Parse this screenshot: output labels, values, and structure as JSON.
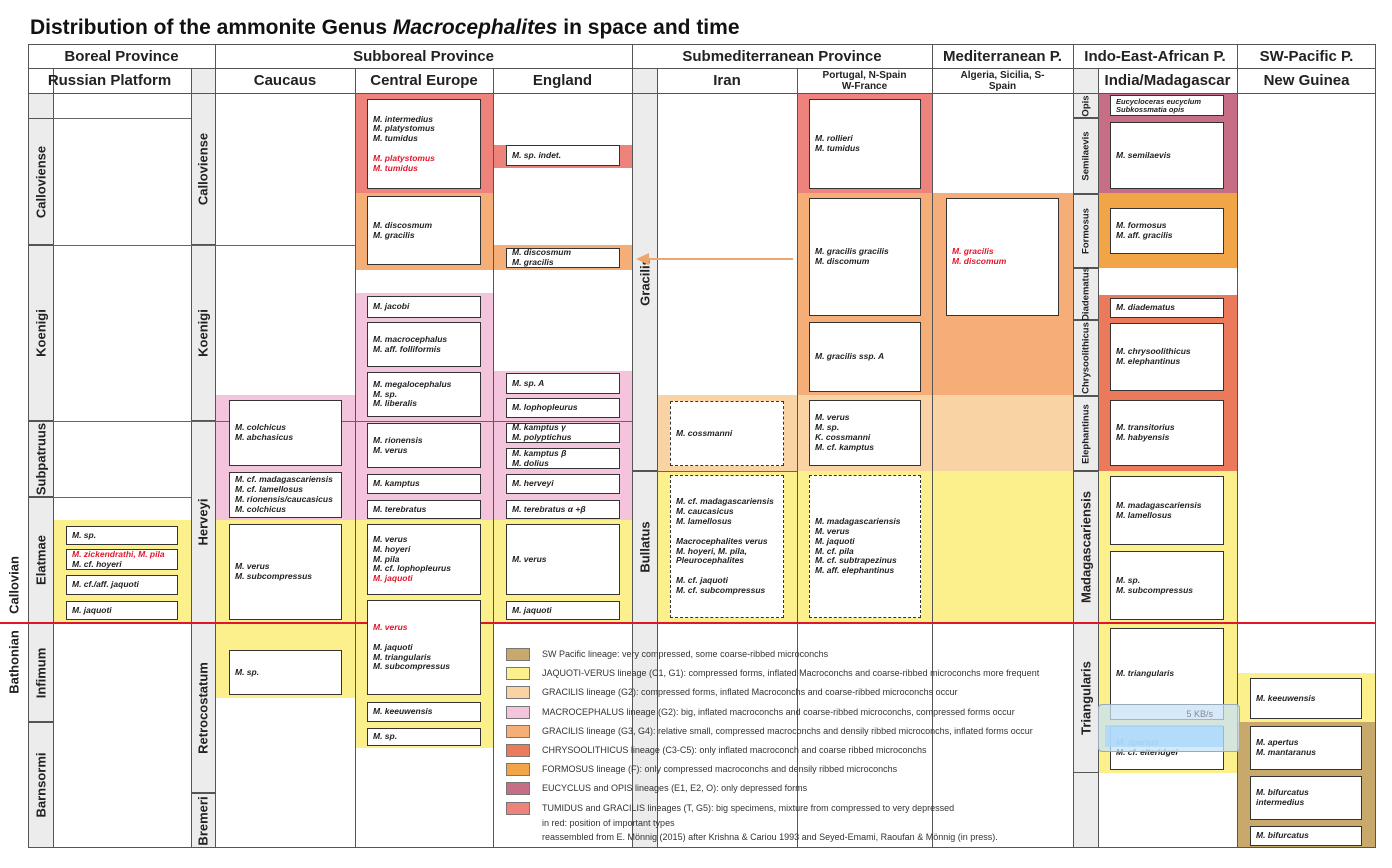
{
  "title": {
    "prefix": "Distribution of the ammonite Genus ",
    "italic": "Macrocephalites",
    "suffix": " in space and time"
  },
  "provinces": [
    "Boreal Province",
    "Subboreal Province",
    "Submediterranean Province",
    "Mediterranean P.",
    "Indo-East-African P.",
    "SW-Pacific P."
  ],
  "regions": [
    "Russian Platform",
    "Caucaus",
    "Central Europe",
    "England",
    "Iran",
    "Portugal, N-Spain W-France",
    "Algeria, Sicilia, S- Spain",
    "India/Madagascar",
    "New Guinea"
  ],
  "stages": [
    "Callovian",
    "Bathonian"
  ],
  "zones": {
    "russian": [
      "Calloviense",
      "Koenigi",
      "Subpatruus",
      "Elatmae",
      "Infimum",
      "Barnsormi"
    ],
    "subboreal": [
      "Calloviense",
      "Koenigi",
      "Herveyi",
      "Retrocostatum",
      "Bremeri"
    ],
    "submediterranean": [
      "Gracilis",
      "Bullatus"
    ],
    "indo": [
      "Opis",
      "Semilaevis",
      "Formosus",
      "Diadematus",
      "Chrysoolithicus",
      "Elephantinus",
      "Madagascariensis",
      "Triangularis"
    ]
  },
  "boxes": [
    {
      "lines": [
        {
          "text": "M. sp."
        }
      ]
    },
    {
      "lines": [
        {
          "text": "M. zickendrathi, M. pila",
          "red": true
        },
        {
          "text": "M. cf. hoyeri"
        }
      ]
    },
    {
      "lines": [
        {
          "text": "M. cf./aff. jaquoti"
        }
      ]
    },
    {
      "lines": [
        {
          "text": "M. jaquoti"
        }
      ]
    },
    {
      "lines": [
        {
          "text": "M. colchicus"
        },
        {
          "text": "M. abchasicus"
        }
      ]
    },
    {
      "lines": [
        {
          "text": "M. cf. madagascariensis"
        },
        {
          "text": "M. cf. lamellosus"
        },
        {
          "text": "M. rionensis/caucasicus"
        },
        {
          "text": "M. colchicus"
        }
      ]
    },
    {
      "lines": [
        {
          "text": "M. verus"
        },
        {
          "text": "M. subcompressus"
        }
      ]
    },
    {
      "lines": [
        {
          "text": "M. sp."
        }
      ]
    },
    {
      "lines": [
        {
          "text": "M. intermedius"
        },
        {
          "text": "M. platystomus"
        },
        {
          "text": "M. tumidus"
        },
        {
          "text": "M. platystomus",
          "red": true
        },
        {
          "text": "M. tumidus",
          "red": true
        }
      ]
    },
    {
      "lines": [
        {
          "text": "M. discosmum"
        },
        {
          "text": "M. gracilis"
        }
      ]
    },
    {
      "lines": [
        {
          "text": "M. jacobi"
        }
      ]
    },
    {
      "lines": [
        {
          "text": "M. macrocephalus"
        },
        {
          "text": "M. aff. folliformis"
        }
      ]
    },
    {
      "lines": [
        {
          "text": "M. megalocephalus"
        },
        {
          "text": "M. sp."
        },
        {
          "text": "M. liberalis"
        }
      ]
    },
    {
      "lines": [
        {
          "text": "M. rionensis"
        },
        {
          "text": "M. verus"
        }
      ]
    },
    {
      "lines": [
        {
          "text": "M. kamptus"
        }
      ]
    },
    {
      "lines": [
        {
          "text": "M. terebratus"
        }
      ]
    },
    {
      "lines": [
        {
          "text": "M. verus"
        },
        {
          "text": "M. hoyeri"
        },
        {
          "text": "M. pila"
        },
        {
          "text": "M. cf. lophopleurus"
        },
        {
          "text": "M. jaquoti",
          "red": true
        }
      ]
    },
    {
      "lines": [
        {
          "text": "M. verus",
          "red": true
        },
        {
          "text": "M. jaquoti"
        },
        {
          "text": "M. triangularis"
        },
        {
          "text": "M. subcompressus"
        }
      ]
    },
    {
      "lines": [
        {
          "text": "M. keeuwensis"
        }
      ]
    },
    {
      "lines": [
        {
          "text": "M. sp."
        }
      ]
    },
    {
      "lines": [
        {
          "text": "M. sp. indet."
        }
      ]
    },
    {
      "lines": [
        {
          "text": "M. discosmum"
        },
        {
          "text": "M. gracilis"
        }
      ]
    },
    {
      "lines": [
        {
          "text": "M. sp. A"
        }
      ]
    },
    {
      "lines": [
        {
          "text": "M. lophopleurus"
        }
      ]
    },
    {
      "lines": [
        {
          "text": "M. kamptus γ"
        },
        {
          "text": "M. polyptichus"
        }
      ]
    },
    {
      "lines": [
        {
          "text": "M. kamptus β"
        },
        {
          "text": "M. dolius"
        }
      ]
    },
    {
      "lines": [
        {
          "text": "M. herveyi"
        }
      ]
    },
    {
      "lines": [
        {
          "text": "M. terebratus α +β"
        }
      ]
    },
    {
      "lines": [
        {
          "text": "M. verus"
        }
      ]
    },
    {
      "lines": [
        {
          "text": "M. jaquoti"
        }
      ]
    },
    {
      "lines": [
        {
          "text": "M. cossmanni"
        }
      ],
      "dashed": true
    },
    {
      "lines": [
        {
          "text": "M. cf. madagascariensis"
        },
        {
          "text": "M. caucasicus"
        },
        {
          "text": "M. lamellosus"
        },
        {
          "text": "Macrocephalites verus"
        },
        {
          "text": "M. hoyeri, M. pila,"
        },
        {
          "text": "Pleurocephalites"
        },
        {
          "text": "M. cf. jaquoti"
        },
        {
          "text": "M. cf. subcompressus"
        }
      ],
      "dashed": true
    },
    {
      "lines": [
        {
          "text": "M. rollieri"
        },
        {
          "text": "M. tumidus"
        }
      ]
    },
    {
      "lines": [
        {
          "text": "M. gracilis gracilis"
        },
        {
          "text": "M. discomum"
        }
      ]
    },
    {
      "lines": [
        {
          "text": "M. gracilis ssp. A"
        }
      ]
    },
    {
      "lines": [
        {
          "text": "M. verus"
        },
        {
          "text": "M. sp."
        },
        {
          "text": "K. cossmanni"
        },
        {
          "text": "M. cf. kamptus"
        }
      ]
    },
    {
      "lines": [
        {
          "text": "M. madagascariensis"
        },
        {
          "text": "M. verus"
        },
        {
          "text": "M. jaquoti"
        },
        {
          "text": "M. cf. pila"
        },
        {
          "text": "M. cf. subtrapezinus"
        },
        {
          "text": "M. aff. elephantinus"
        }
      ],
      "dashed": true
    },
    {
      "lines": [
        {
          "text": "M. gracilis",
          "red": true
        },
        {
          "text": "M. discomum",
          "red": true
        }
      ]
    },
    {
      "lines": [
        {
          "text": "Eucycloceras eucyclum"
        },
        {
          "text": "Subkossmatia opis"
        }
      ]
    },
    {
      "lines": [
        {
          "text": "M. semilaevis"
        }
      ]
    },
    {
      "lines": [
        {
          "text": "M. formosus"
        },
        {
          "text": "M. aff. gracilis"
        }
      ]
    },
    {
      "lines": [
        {
          "text": "M. diadematus"
        }
      ]
    },
    {
      "lines": [
        {
          "text": "M. chrysoolithicus"
        },
        {
          "text": "M. elephantinus"
        }
      ]
    },
    {
      "lines": [
        {
          "text": "M. transitorius"
        },
        {
          "text": "M. habyensis"
        }
      ]
    },
    {
      "lines": [
        {
          "text": "M. madagascariensis"
        },
        {
          "text": "M. lamellosus"
        }
      ]
    },
    {
      "lines": [
        {
          "text": "M. sp."
        },
        {
          "text": "M. subcompressus"
        }
      ]
    },
    {
      "lines": [
        {
          "text": "M. triangularis"
        }
      ]
    },
    {
      "lines": [
        {
          "text": "M. apertus"
        },
        {
          "text": "M. cf. eiteridgei"
        }
      ]
    },
    {
      "lines": [
        {
          "text": "M. keeuwensis"
        }
      ]
    },
    {
      "lines": [
        {
          "text": "M. apertus"
        },
        {
          "text": "M. mantaranus"
        }
      ]
    },
    {
      "lines": [
        {
          "text": "M. bifurcatus"
        },
        {
          "text": "intermedius"
        }
      ]
    },
    {
      "lines": [
        {
          "text": "M. bifurcatus"
        }
      ]
    }
  ],
  "legend": [
    {
      "text": "SW Pacific lineage: very compressed, some coarse-ribbed microconchs",
      "color": "#c8a86b"
    },
    {
      "text": "JAQUOTI-VERUS lineage (C1, G1): compressed forms, inflated Macroconchs and coarse-ribbed microconchs more frequent",
      "color": "#fcf08c"
    },
    {
      "text": "GRACILIS lineage (G2): compressed forms, inflated Macroconchs and coarse-ribbed microconchs occur",
      "color": "#fad3a5"
    },
    {
      "text": "MACROCEPHALUS lineage (G2): big, inflated macroconchs and coarse-ribbed microconchs, compressed forms occur",
      "color": "#f4c3dc"
    },
    {
      "text": "GRACILIS lineage (G3, G4): relative small, compressed macroconchs and densily ribbed microconchs, inflated forms occur",
      "color": "#f5ae78"
    },
    {
      "text": "CHRYSOOLITHICUS lineage (C3-C5): only inflated macroconch and coarse ribbed microconchs",
      "color": "#ea7a5b"
    },
    {
      "text": "FORMOSUS lineage (F): only compressed macroconchs and densily ribbed microconchs",
      "color": "#f2a546"
    },
    {
      "text": "EUCYCLUS and OPIS lineages (E1, E2, O): only depressed forms",
      "color": "#c76e87"
    },
    {
      "text": "TUMIDUS and GRACILIS lineages (T, G5): big specimens, mixture from compressed to very depressed",
      "color": "#ee837b"
    }
  ],
  "notes": [
    "in red: position of important types",
    "reassembled from E. Mönnig (2015) after Krishna & Cariou 1993 and Seyed-Emami, Raoufan & Mönnig (in press)."
  ],
  "widget": {
    "speed": "5 KB/s"
  }
}
